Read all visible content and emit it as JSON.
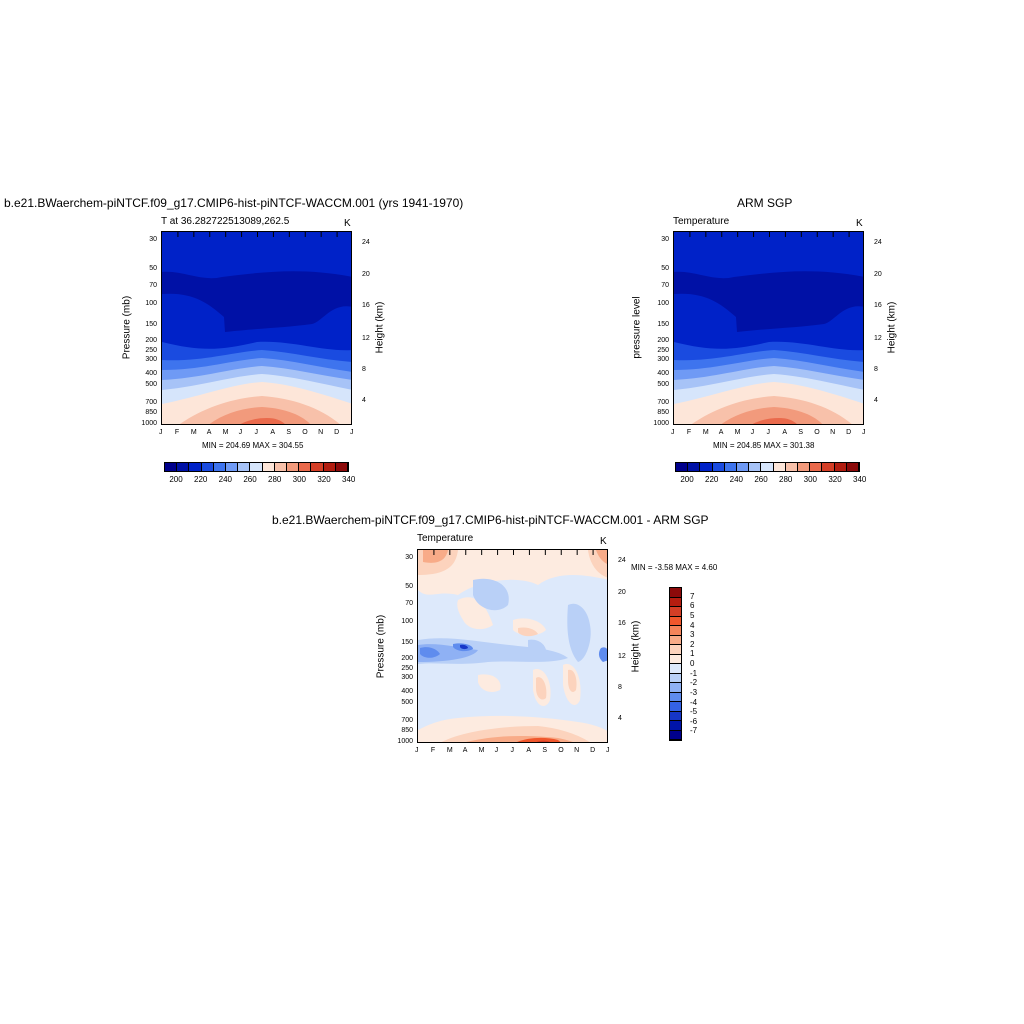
{
  "panels": [
    {
      "title": "b.e21.BWaerchem-piNTCF.f09_g17.CMIP6-hist-piNTCF-WACCM.001 (yrs 1941-1970)",
      "subtitle_left": "T at 36.282722513089,262.5",
      "subtitle_right": "K",
      "ylabel": "Pressure (mb)",
      "y2label": "Height (km)",
      "minmax": "MIN = 204.69 MAX = 304.55"
    },
    {
      "title": "ARM SGP",
      "subtitle_left": "Temperature",
      "subtitle_right": "K",
      "ylabel": "pressure level",
      "y2label": "Height (km)",
      "minmax": "MIN = 204.85 MAX = 301.38"
    },
    {
      "title": "b.e21.BWaerchem-piNTCF.f09_g17.CMIP6-hist-piNTCF-WACCM.001 - ARM SGP",
      "subtitle_left": "Temperature",
      "subtitle_right": "K",
      "ylabel": "Pressure (mb)",
      "y2label": "Height (km)",
      "minmax": "MIN =  -3.58 MAX =   4.60"
    }
  ],
  "chart_data": [
    {
      "type": "heatmap",
      "title": "b.e21.BWaerchem-piNTCF.f09_g17.CMIP6-hist-piNTCF-WACCM.001 (yrs 1941-1970)",
      "x_ticks": [
        "J",
        "F",
        "M",
        "A",
        "M",
        "J",
        "J",
        "A",
        "S",
        "O",
        "N",
        "D",
        "J"
      ],
      "y_ticks": [
        "30",
        "50",
        "70",
        "100",
        "150",
        "200",
        "250",
        "300",
        "400",
        "500",
        "700",
        "850",
        "1000"
      ],
      "y2_ticks": [
        "24",
        "20",
        "16",
        "12",
        "8",
        "4"
      ],
      "ylabel": "Pressure (mb)",
      "y2label": "Height (km)",
      "colorbar_labels": [
        "200",
        "220",
        "240",
        "260",
        "280",
        "300",
        "320",
        "340"
      ],
      "min": 204.69,
      "max": 304.55
    },
    {
      "type": "heatmap",
      "title": "ARM SGP",
      "x_ticks": [
        "J",
        "F",
        "M",
        "A",
        "M",
        "J",
        "J",
        "A",
        "S",
        "O",
        "N",
        "D",
        "J"
      ],
      "y_ticks": [
        "30",
        "50",
        "70",
        "100",
        "150",
        "200",
        "250",
        "300",
        "400",
        "500",
        "700",
        "850",
        "1000"
      ],
      "y2_ticks": [
        "24",
        "20",
        "16",
        "12",
        "8",
        "4"
      ],
      "ylabel": "pressure level",
      "y2label": "Height (km)",
      "colorbar_labels": [
        "200",
        "220",
        "240",
        "260",
        "280",
        "300",
        "320",
        "340"
      ],
      "min": 204.85,
      "max": 301.38
    },
    {
      "type": "heatmap",
      "title": "b.e21.BWaerchem-piNTCF.f09_g17.CMIP6-hist-piNTCF-WACCM.001 - ARM SGP",
      "x_ticks": [
        "J",
        "F",
        "M",
        "A",
        "M",
        "J",
        "J",
        "A",
        "S",
        "O",
        "N",
        "D",
        "J"
      ],
      "y_ticks": [
        "30",
        "50",
        "70",
        "100",
        "150",
        "200",
        "250",
        "300",
        "400",
        "500",
        "700",
        "850",
        "1000"
      ],
      "y2_ticks": [
        "24",
        "20",
        "16",
        "12",
        "8",
        "4"
      ],
      "ylabel": "Pressure (mb)",
      "y2label": "Height (km)",
      "colorbar_labels": [
        "7",
        "6",
        "5",
        "4",
        "3",
        "2",
        "1",
        "0",
        "-1",
        "-2",
        "-3",
        "-4",
        "-5",
        "-6",
        "-7"
      ],
      "min": -3.58,
      "max": 4.6
    }
  ],
  "colors": {
    "abs_scale": [
      "#00008c",
      "#0011a6",
      "#0022c8",
      "#1a4be0",
      "#3e74ee",
      "#6f9af5",
      "#a7c3f7",
      "#d6e5fb",
      "#fde6d9",
      "#f8c1aa",
      "#f29a7c",
      "#ea6a4c",
      "#d43e26",
      "#b21d10",
      "#8c0a0a"
    ],
    "diff_scale": [
      "#8c0a0a",
      "#b51d10",
      "#d43e26",
      "#f0572c",
      "#f4845a",
      "#f8ab88",
      "#fcd3bd",
      "#fdebe0",
      "#dde9fb",
      "#b9d0f7",
      "#8fb1f4",
      "#5f8cee",
      "#3462e6",
      "#1636c8",
      "#0014a8",
      "#00008c"
    ]
  }
}
